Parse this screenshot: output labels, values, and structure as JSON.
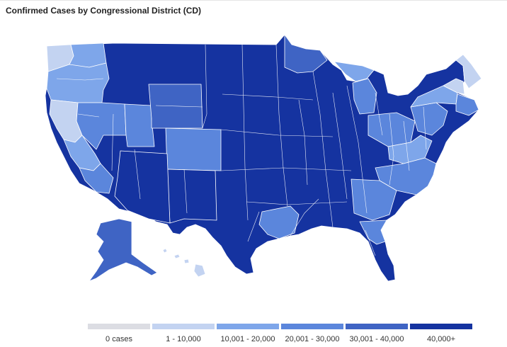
{
  "panel": {
    "title": "Confirmed Cases by Congressional District (CD)"
  },
  "colors": {
    "c0": "#dcdde3",
    "c1": "#c3d3f1",
    "c2": "#7ea6ea",
    "c3": "#5b86dc",
    "c4": "#3f64c4",
    "c5": "#1533a0",
    "border": "#ffffff"
  },
  "legend": [
    {
      "label": "0 cases",
      "color": "#dcdde3"
    },
    {
      "label": "1 - 10,000",
      "color": "#c3d3f1"
    },
    {
      "label": "10,001 - 20,000",
      "color": "#7ea6ea"
    },
    {
      "label": "20,001 - 30,000",
      "color": "#5b86dc"
    },
    {
      "label": "30,001 - 40,000",
      "color": "#3f64c4"
    },
    {
      "label": "40,000+",
      "color": "#1533a0"
    }
  ],
  "map": {
    "regions": [
      {
        "name": "mainland-us",
        "bin": 5
      },
      {
        "name": "washington-west",
        "bin": 1
      },
      {
        "name": "washington-east",
        "bin": 2
      },
      {
        "name": "oregon",
        "bin": 2
      },
      {
        "name": "california-north",
        "bin": 1
      },
      {
        "name": "california-central",
        "bin": 2
      },
      {
        "name": "california-south",
        "bin": 3
      },
      {
        "name": "nevada-north",
        "bin": 3
      },
      {
        "name": "utah",
        "bin": 3
      },
      {
        "name": "wyoming",
        "bin": 4
      },
      {
        "name": "colorado",
        "bin": 3
      },
      {
        "name": "new-mexico",
        "bin": 5
      },
      {
        "name": "arizona",
        "bin": 5
      },
      {
        "name": "minnesota-north",
        "bin": 4
      },
      {
        "name": "michigan-north",
        "bin": 2
      },
      {
        "name": "michigan-south",
        "bin": 3
      },
      {
        "name": "ohio-valley",
        "bin": 3
      },
      {
        "name": "appalachia",
        "bin": 2
      },
      {
        "name": "virginia-carolinas",
        "bin": 3
      },
      {
        "name": "deep-south",
        "bin": 3
      },
      {
        "name": "florida-north",
        "bin": 3
      },
      {
        "name": "arkansas-louisiana",
        "bin": 3
      },
      {
        "name": "mid-atlantic",
        "bin": 3
      },
      {
        "name": "new-york",
        "bin": 2
      },
      {
        "name": "new-england-north",
        "bin": 1
      },
      {
        "name": "maine",
        "bin": 1
      },
      {
        "name": "new-england-south",
        "bin": 3
      },
      {
        "name": "alaska",
        "bin": 4
      },
      {
        "name": "hawaii",
        "bin": 1
      }
    ]
  }
}
